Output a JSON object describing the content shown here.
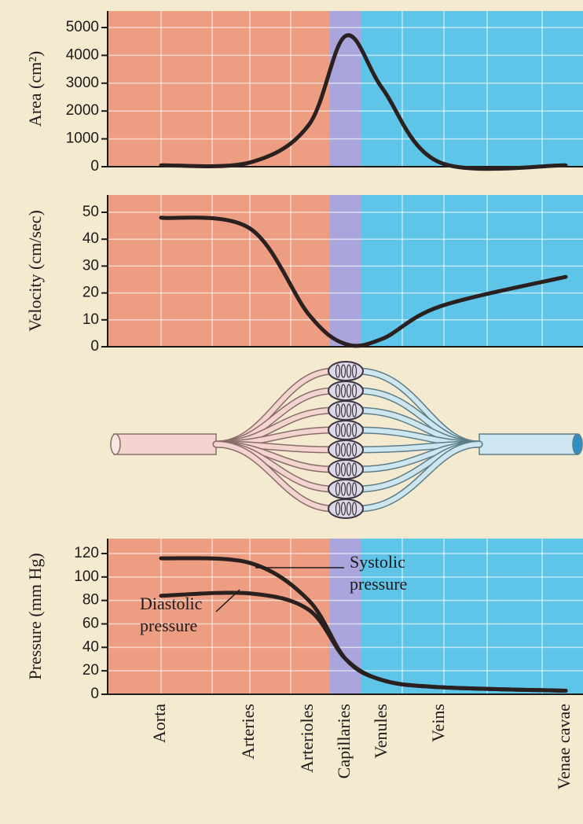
{
  "chart_data": {
    "type": "line",
    "categories": [
      "Aorta",
      "Arteries",
      "Arterioles",
      "Capillaries",
      "Venules",
      "Veins",
      "Venae cavae"
    ],
    "panels": [
      {
        "y_label": "Area (cm²)",
        "ylim": [
          0,
          5000
        ],
        "yticks": [
          0,
          1000,
          2000,
          3000,
          4000,
          5000
        ],
        "series": [
          {
            "name": null,
            "color": "#2a2020",
            "values": [
              50,
              150,
              1500,
              4700,
              2800,
              150,
              50
            ]
          }
        ]
      },
      {
        "y_label": "Velocity (cm/sec)",
        "ylim": [
          0,
          50
        ],
        "yticks": [
          0,
          10,
          20,
          30,
          40,
          50
        ],
        "series": [
          {
            "name": null,
            "color": "#2a2020",
            "values": [
              48,
              44,
              12,
              1,
              3,
              15,
              26
            ]
          }
        ]
      },
      {
        "y_label": "Pressure (mm Hg)",
        "ylim": [
          0,
          120
        ],
        "yticks": [
          0,
          20,
          40,
          60,
          80,
          100,
          120
        ],
        "series": [
          {
            "name": "Systolic pressure",
            "color": "#2a2020",
            "values": [
              116,
              112,
              80,
              30,
              12,
              6,
              3
            ]
          },
          {
            "name": "Diastolic pressure",
            "color": "#2a2020",
            "values": [
              84,
              86,
              72,
              30,
              12,
              6,
              3
            ]
          }
        ]
      }
    ]
  }
}
